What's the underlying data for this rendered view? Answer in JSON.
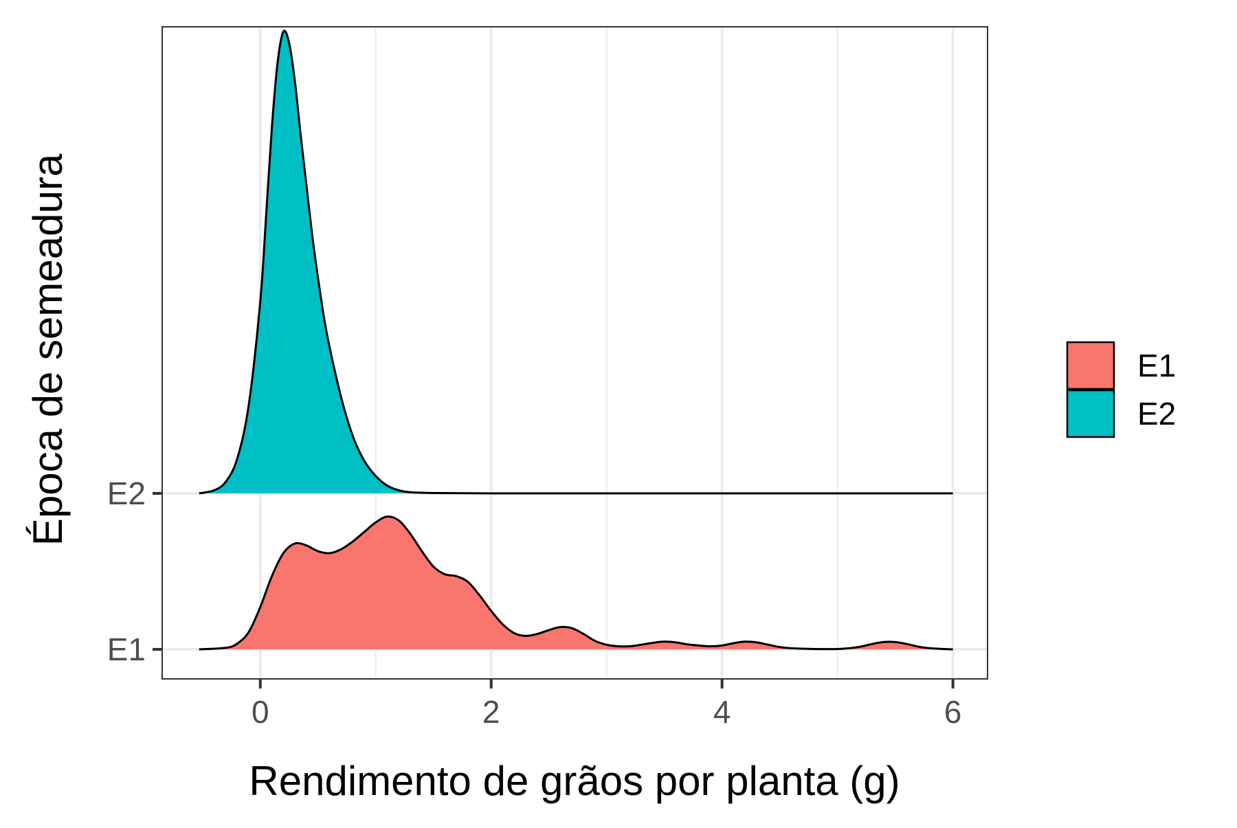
{
  "chart_data": {
    "type": "ridgeline-density",
    "xlabel": "Rendimento de grãos por planta (g)",
    "ylabel": "Época de semeadura",
    "x_ticks": [
      0,
      2,
      4,
      6
    ],
    "x_minor_gridlines": [
      1,
      3,
      5
    ],
    "xlim": [
      -0.85,
      6.3
    ],
    "grid": true,
    "legend": {
      "position": "right",
      "entries": [
        {
          "label": "E1",
          "color": "#F8766D"
        },
        {
          "label": "E2",
          "color": "#00BFC4"
        }
      ]
    },
    "series": [
      {
        "name": "E1",
        "color": "#F8766D",
        "baseline_level": 0,
        "points": [
          [
            -0.53,
            0.0
          ],
          [
            -0.3,
            0.004
          ],
          [
            -0.2,
            0.015
          ],
          [
            -0.1,
            0.045
          ],
          [
            0.0,
            0.11
          ],
          [
            0.1,
            0.19
          ],
          [
            0.2,
            0.25
          ],
          [
            0.3,
            0.275
          ],
          [
            0.4,
            0.27
          ],
          [
            0.5,
            0.255
          ],
          [
            0.6,
            0.25
          ],
          [
            0.7,
            0.26
          ],
          [
            0.8,
            0.28
          ],
          [
            0.9,
            0.305
          ],
          [
            1.0,
            0.33
          ],
          [
            1.1,
            0.345
          ],
          [
            1.2,
            0.335
          ],
          [
            1.3,
            0.3
          ],
          [
            1.4,
            0.255
          ],
          [
            1.5,
            0.215
          ],
          [
            1.6,
            0.195
          ],
          [
            1.7,
            0.19
          ],
          [
            1.8,
            0.175
          ],
          [
            1.9,
            0.14
          ],
          [
            2.0,
            0.1
          ],
          [
            2.1,
            0.065
          ],
          [
            2.2,
            0.042
          ],
          [
            2.3,
            0.035
          ],
          [
            2.4,
            0.04
          ],
          [
            2.5,
            0.05
          ],
          [
            2.6,
            0.058
          ],
          [
            2.7,
            0.055
          ],
          [
            2.8,
            0.04
          ],
          [
            2.9,
            0.022
          ],
          [
            3.0,
            0.012
          ],
          [
            3.1,
            0.008
          ],
          [
            3.2,
            0.008
          ],
          [
            3.3,
            0.012
          ],
          [
            3.4,
            0.017
          ],
          [
            3.5,
            0.02
          ],
          [
            3.6,
            0.018
          ],
          [
            3.7,
            0.013
          ],
          [
            3.8,
            0.01
          ],
          [
            3.9,
            0.008
          ],
          [
            4.0,
            0.01
          ],
          [
            4.1,
            0.016
          ],
          [
            4.2,
            0.02
          ],
          [
            4.3,
            0.018
          ],
          [
            4.4,
            0.012
          ],
          [
            4.5,
            0.006
          ],
          [
            4.6,
            0.003
          ],
          [
            4.8,
            0.001
          ],
          [
            5.0,
            0.001
          ],
          [
            5.1,
            0.003
          ],
          [
            5.2,
            0.007
          ],
          [
            5.3,
            0.014
          ],
          [
            5.4,
            0.019
          ],
          [
            5.5,
            0.019
          ],
          [
            5.6,
            0.014
          ],
          [
            5.7,
            0.007
          ],
          [
            5.8,
            0.003
          ],
          [
            6.0,
            0.0
          ]
        ]
      },
      {
        "name": "E2",
        "color": "#00BFC4",
        "baseline_level": 1,
        "points": [
          [
            -0.53,
            0.0
          ],
          [
            -0.4,
            0.008
          ],
          [
            -0.3,
            0.03
          ],
          [
            -0.2,
            0.09
          ],
          [
            -0.1,
            0.23
          ],
          [
            0.0,
            0.5
          ],
          [
            0.05,
            0.72
          ],
          [
            0.1,
            0.95
          ],
          [
            0.15,
            1.12
          ],
          [
            0.2,
            1.2
          ],
          [
            0.25,
            1.17
          ],
          [
            0.3,
            1.07
          ],
          [
            0.35,
            0.93
          ],
          [
            0.4,
            0.8
          ],
          [
            0.45,
            0.67
          ],
          [
            0.5,
            0.56
          ],
          [
            0.55,
            0.46
          ],
          [
            0.6,
            0.38
          ],
          [
            0.7,
            0.25
          ],
          [
            0.8,
            0.15
          ],
          [
            0.9,
            0.085
          ],
          [
            1.0,
            0.045
          ],
          [
            1.1,
            0.02
          ],
          [
            1.2,
            0.008
          ],
          [
            1.3,
            0.003
          ],
          [
            1.5,
            0.001
          ],
          [
            2.0,
            0.0
          ],
          [
            3.0,
            0.0
          ],
          [
            4.0,
            0.0
          ],
          [
            5.0,
            0.0
          ],
          [
            6.0,
            0.0
          ]
        ]
      }
    ]
  }
}
